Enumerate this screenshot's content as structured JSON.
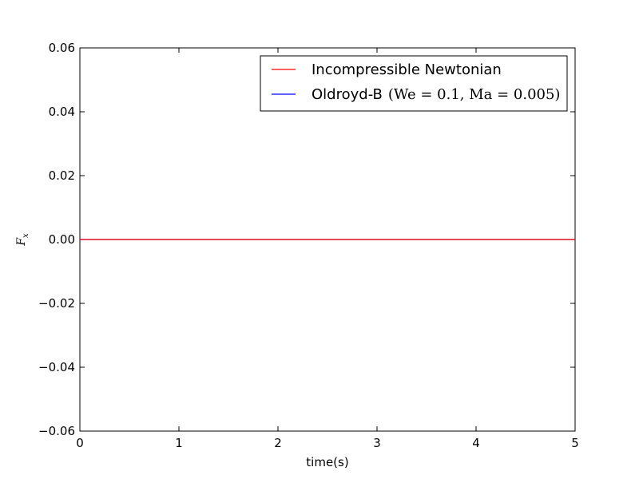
{
  "chart_data": {
    "type": "line",
    "title": "",
    "xlabel": "time(s)",
    "ylabel_symbol": "F",
    "ylabel_subscript": "x",
    "xlim": [
      0,
      5
    ],
    "ylim": [
      -0.06,
      0.06
    ],
    "x_ticks": [
      0,
      1,
      2,
      3,
      4,
      5
    ],
    "x_tick_labels": [
      "0",
      "1",
      "2",
      "3",
      "4",
      "5"
    ],
    "y_ticks": [
      -0.06,
      -0.04,
      -0.02,
      0.0,
      0.02,
      0.04,
      0.06
    ],
    "y_tick_labels": [
      "−0.06",
      "−0.04",
      "−0.02",
      "0.00",
      "0.02",
      "0.04",
      "0.06"
    ],
    "grid": false,
    "legend_position": "top-right",
    "series": [
      {
        "name": "Incompressible Newtonian",
        "color": "#ff0000",
        "x": [
          0,
          5
        ],
        "y": [
          0.0,
          0.0
        ]
      },
      {
        "name": "Oldroyd-B",
        "name_math": "(We = 0.1, Ma = 0.005)",
        "color": "#0000ff",
        "x": [
          0,
          5
        ],
        "y": [
          0.0,
          0.0
        ]
      }
    ]
  }
}
